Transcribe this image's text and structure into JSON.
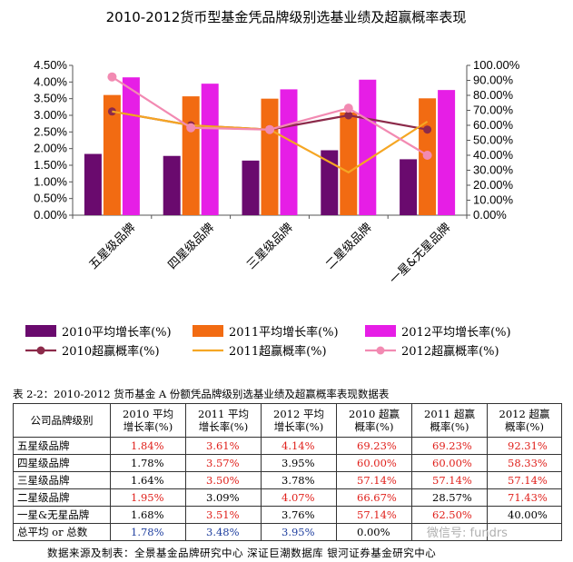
{
  "chart_data": {
    "type": "bar",
    "title": "2010-2012货币型基金凭品牌级别选基业绩及超赢概率表现",
    "categories": [
      "五星级品牌",
      "四星级品牌",
      "三星级品牌",
      "二星级品牌",
      "一星&无星品牌"
    ],
    "y_left_ticks": [
      "4.50%",
      "4.00%",
      "3.50%",
      "3.00%",
      "2.50%",
      "2.00%",
      "1.50%",
      "1.00%",
      "0.50%",
      "0.00%"
    ],
    "y_right_ticks": [
      "100.00%",
      "90.00%",
      "80.00%",
      "70.00%",
      "60.00%",
      "50.00%",
      "40.00%",
      "30.00%",
      "20.00%",
      "10.00%",
      "0.00%"
    ],
    "ylim_left": [
      0,
      4.5
    ],
    "ylim_right": [
      0,
      100
    ],
    "bar_series": [
      {
        "name": "2010平均增长率(%)",
        "color": "#6a0a6e",
        "values": [
          1.84,
          1.78,
          1.64,
          1.95,
          1.68
        ]
      },
      {
        "name": "2011平均增长率(%)",
        "color": "#f26b12",
        "values": [
          3.61,
          3.57,
          3.5,
          3.09,
          3.51
        ]
      },
      {
        "name": "2012平均增长率(%)",
        "color": "#e61ee6",
        "values": [
          4.14,
          3.95,
          3.78,
          4.07,
          3.76
        ]
      }
    ],
    "line_series": [
      {
        "name": "2010超赢概率(%)",
        "color": "#8c2a4a",
        "values": [
          69.23,
          60.0,
          57.14,
          66.67,
          57.14
        ]
      },
      {
        "name": "2011超赢概率(%)",
        "color": "#f5a623",
        "values": [
          69.23,
          60.0,
          57.14,
          28.57,
          62.5
        ]
      },
      {
        "name": "2012超赢概率(%)",
        "color": "#f28ab2",
        "values": [
          92.31,
          58.33,
          57.14,
          71.43,
          40.0
        ]
      }
    ],
    "legend_position": "bottom"
  },
  "table": {
    "caption": "表 2-2：2010-2012 货币基金 A 份额凭品牌级别选基业绩及超赢概率表现数据表",
    "headers": [
      [
        "公司品牌级别",
        ""
      ],
      [
        "2010 平均",
        "增长率(%)"
      ],
      [
        "2011 平均",
        "增长率(%)"
      ],
      [
        "2012 平均",
        "增长率(%)"
      ],
      [
        "2010 超赢",
        "概率(%)"
      ],
      [
        "2011 超赢",
        "概率(%)"
      ],
      [
        "2012 超赢",
        "概率(%)"
      ]
    ],
    "rows": [
      [
        "五星级品牌",
        "1.84%",
        "3.61%",
        "4.14%",
        "69.23%",
        "69.23%",
        "92.31%"
      ],
      [
        "四星级品牌",
        "1.78%",
        "3.57%",
        "3.95%",
        "60.00%",
        "60.00%",
        "58.33%"
      ],
      [
        "三星级品牌",
        "1.64%",
        "3.50%",
        "3.78%",
        "57.14%",
        "57.14%",
        "57.14%"
      ],
      [
        "二星级品牌",
        "1.95%",
        "3.09%",
        "4.07%",
        "66.67%",
        "28.57%",
        "71.43%"
      ],
      [
        "一星&无星品牌",
        "1.68%",
        "3.51%",
        "3.76%",
        "57.14%",
        "62.50%",
        "40.00%"
      ],
      [
        "总平均 or 总数",
        "1.78%",
        "3.48%",
        "3.95%",
        "0.00%",
        "",
        ""
      ]
    ],
    "cell_colors": [
      [
        "",
        "red",
        "red",
        "red",
        "red",
        "red",
        "red"
      ],
      [
        "",
        "",
        "red",
        "",
        "red",
        "red",
        "red"
      ],
      [
        "",
        "",
        "red",
        "",
        "red",
        "red",
        "red"
      ],
      [
        "",
        "red",
        "",
        "red",
        "red",
        "",
        "red"
      ],
      [
        "",
        "",
        "red",
        "",
        "red",
        "red",
        ""
      ],
      [
        "",
        "blue",
        "blue",
        "blue",
        "",
        "",
        ""
      ]
    ]
  },
  "footer": {
    "source": "数据来源及制表：全景基金品牌研究中心 深证巨潮数据库 银河证券基金研究中心",
    "watermark": "微信号: fundrs"
  }
}
